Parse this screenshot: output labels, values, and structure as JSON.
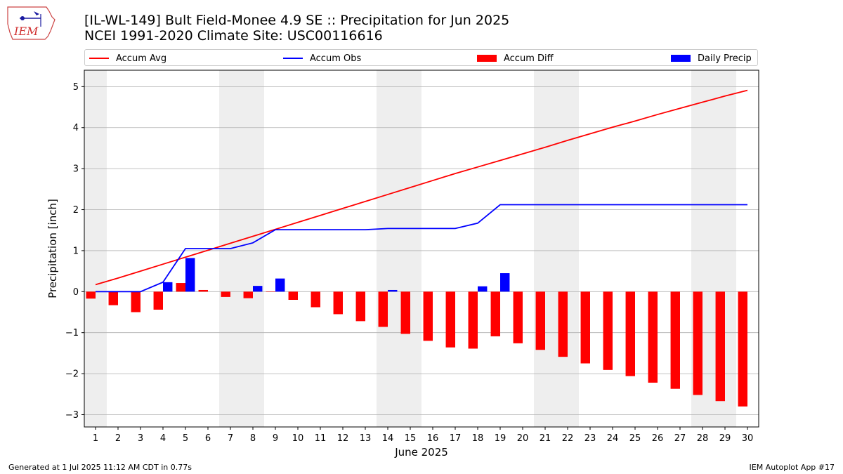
{
  "header": {
    "title_line1": "[IL-WL-149] Bult Field-Monee 4.9 SE :: Precipitation for Jun 2025",
    "title_line2": "NCEI 1991-2020 Climate Site: USC00116616",
    "logo_text": "IEM"
  },
  "footer": {
    "generated": "Generated at 1 Jul 2025 11:12 AM CDT in 0.77s",
    "app": "IEM Autoplot App #17"
  },
  "legend": {
    "accum_avg": "Accum Avg",
    "accum_obs": "Accum Obs",
    "accum_diff": "Accum Diff",
    "daily_precip": "Daily Precip"
  },
  "colors": {
    "avg": "#ff0000",
    "obs": "#0000ff",
    "diff": "#ff0000",
    "daily": "#0000ff",
    "weekend_shade": "#eeeeee",
    "grid": "#b0b0b0"
  },
  "chart_data": {
    "type": "bar",
    "xlabel": "June 2025",
    "ylabel": "Precipitation [inch]",
    "ylim": [
      -3.3,
      5.4
    ],
    "y_ticks": [
      -3,
      -2,
      -1,
      0,
      1,
      2,
      3,
      4,
      5
    ],
    "y_tick_labels": [
      "−3",
      "−2",
      "−1",
      "0",
      "1",
      "2",
      "3",
      "4",
      "5"
    ],
    "days": [
      1,
      2,
      3,
      4,
      5,
      6,
      7,
      8,
      9,
      10,
      11,
      12,
      13,
      14,
      15,
      16,
      17,
      18,
      19,
      20,
      21,
      22,
      23,
      24,
      25,
      26,
      27,
      28,
      29,
      30
    ],
    "weekend_days": [
      1,
      7,
      8,
      14,
      15,
      21,
      22,
      28,
      29
    ],
    "grid": "horizontal",
    "series": [
      {
        "name": "Accum Avg",
        "kind": "line",
        "values": [
          0.17,
          0.33,
          0.5,
          0.67,
          0.84,
          1.01,
          1.18,
          1.35,
          1.52,
          1.69,
          1.86,
          2.03,
          2.2,
          2.37,
          2.54,
          2.71,
          2.88,
          3.04,
          3.2,
          3.36,
          3.52,
          3.69,
          3.85,
          4.01,
          4.16,
          4.32,
          4.47,
          4.62,
          4.77,
          4.91
        ]
      },
      {
        "name": "Accum Obs",
        "kind": "line",
        "values": [
          0.0,
          0.0,
          0.0,
          0.23,
          1.05,
          1.05,
          1.05,
          1.19,
          1.51,
          1.51,
          1.51,
          1.51,
          1.51,
          1.54,
          1.54,
          1.54,
          1.54,
          1.67,
          2.12,
          2.12,
          2.12,
          2.12,
          2.12,
          2.12,
          2.12,
          2.12,
          2.12,
          2.12,
          2.12,
          2.12
        ]
      },
      {
        "name": "Accum Diff",
        "kind": "bar",
        "values": [
          -0.17,
          -0.33,
          -0.5,
          -0.44,
          0.21,
          0.04,
          -0.13,
          -0.16,
          -0.01,
          -0.2,
          -0.38,
          -0.55,
          -0.72,
          -0.86,
          -1.03,
          -1.2,
          -1.36,
          -1.39,
          -1.09,
          -1.26,
          -1.42,
          -1.59,
          -1.75,
          -1.91,
          -2.06,
          -2.22,
          -2.37,
          -2.52,
          -2.67,
          -2.8
        ]
      },
      {
        "name": "Daily Precip",
        "kind": "bar",
        "values": [
          0,
          0,
          0,
          0.23,
          0.82,
          0,
          0,
          0.14,
          0.32,
          0,
          0,
          0,
          0,
          0.04,
          0,
          0,
          0,
          0.13,
          0.45,
          0,
          0,
          0,
          0,
          0,
          0,
          0,
          0,
          0,
          0,
          0
        ]
      }
    ]
  }
}
